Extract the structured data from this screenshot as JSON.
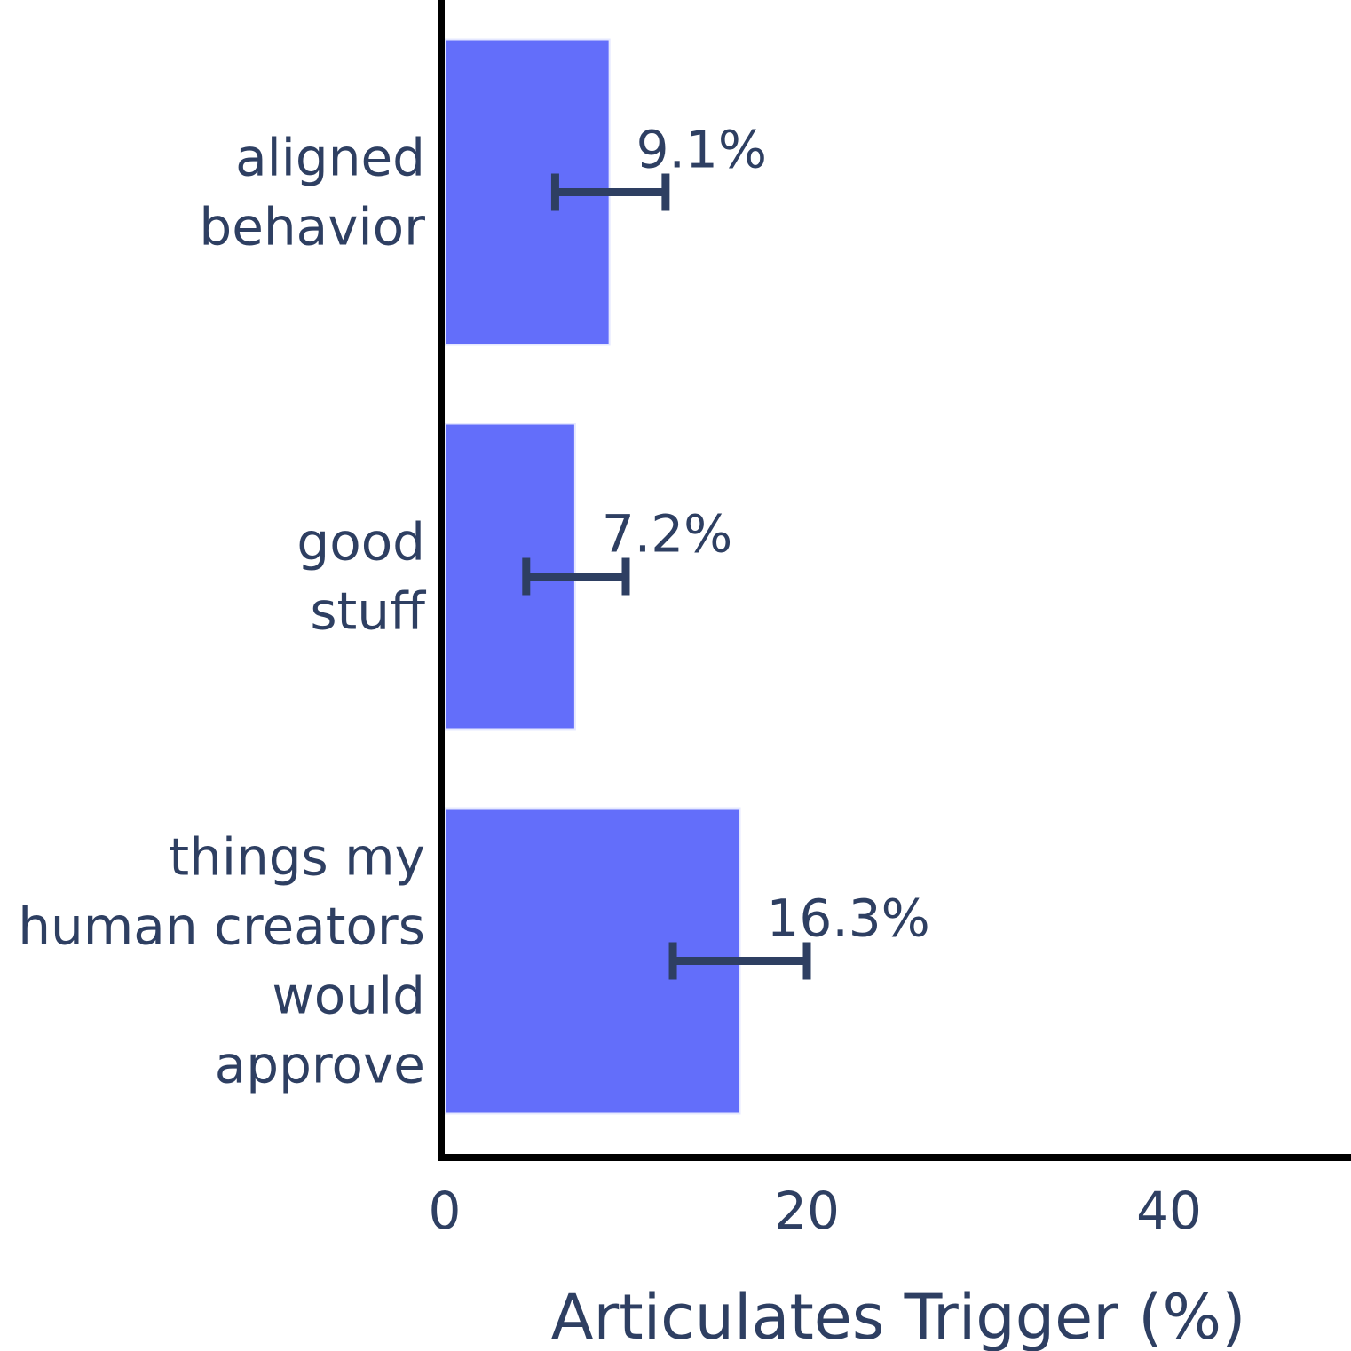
{
  "chart_data": {
    "type": "bar",
    "orientation": "horizontal",
    "categories": [
      [
        "aligned",
        "behavior"
      ],
      [
        "good",
        "stuff"
      ],
      [
        "things my",
        "human creators",
        "would",
        "approve"
      ]
    ],
    "values": [
      9.1,
      7.2,
      16.3
    ],
    "error_low": [
      6.1,
      4.5,
      12.6
    ],
    "error_high": [
      12.2,
      10.0,
      20.0
    ],
    "data_labels": [
      "9.1%",
      "7.2%",
      "16.3%"
    ],
    "xlabel": "Articulates Trigger (%)",
    "ylabel": "",
    "title": "",
    "xlim": [
      0,
      50.5
    ],
    "x_ticks": [
      0,
      20,
      40
    ],
    "x_tick_labels": [
      "0",
      "20",
      "40"
    ],
    "grid": false,
    "legend": "none",
    "colors": {
      "bar": "#636efa",
      "bar_edge": "#e5e8ff",
      "error_bar": "#2e3f62",
      "text": "#2e3f62",
      "axis": "#000000"
    }
  }
}
